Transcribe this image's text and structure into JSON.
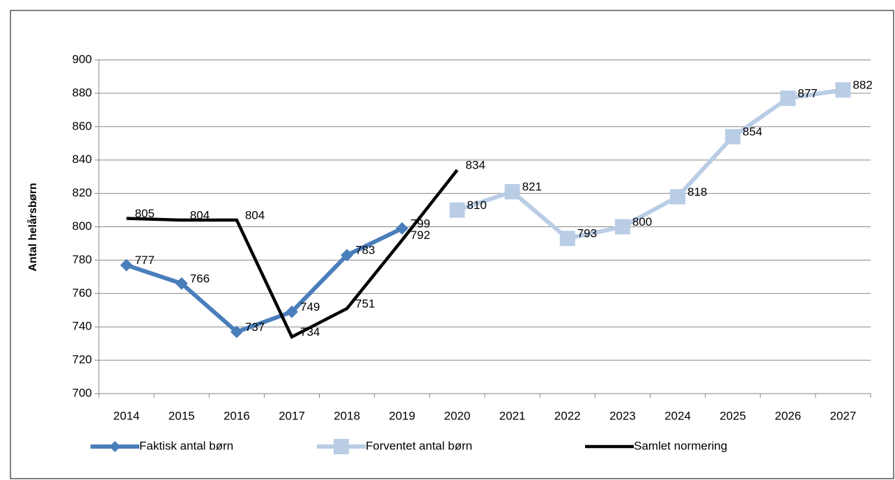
{
  "chart_data": {
    "type": "line",
    "ylabel": "Antal helårsbørn",
    "categories": [
      "2014",
      "2015",
      "2016",
      "2017",
      "2018",
      "2019",
      "2020",
      "2021",
      "2022",
      "2023",
      "2024",
      "2025",
      "2026",
      "2027"
    ],
    "series": [
      {
        "name": "Faktisk antal børn",
        "color": "#4a7ebb",
        "marker": "diamond",
        "values": [
          777,
          766,
          737,
          749,
          783,
          799,
          null,
          null,
          null,
          null,
          null,
          null,
          null,
          null
        ]
      },
      {
        "name": "Forventet antal børn",
        "color": "#b9cde5",
        "marker": "square",
        "values": [
          null,
          null,
          null,
          null,
          null,
          null,
          810,
          821,
          793,
          800,
          818,
          854,
          877,
          882
        ]
      },
      {
        "name": "Samlet normering",
        "color": "#000000",
        "marker": "none",
        "values": [
          805,
          804,
          804,
          734,
          751,
          792,
          834,
          null,
          null,
          null,
          null,
          null,
          null,
          null
        ]
      }
    ],
    "ylim": [
      700,
      900
    ],
    "yticks": [
      700,
      720,
      740,
      760,
      780,
      800,
      820,
      840,
      860,
      880,
      900
    ],
    "grid": true,
    "legend": "bottom"
  }
}
